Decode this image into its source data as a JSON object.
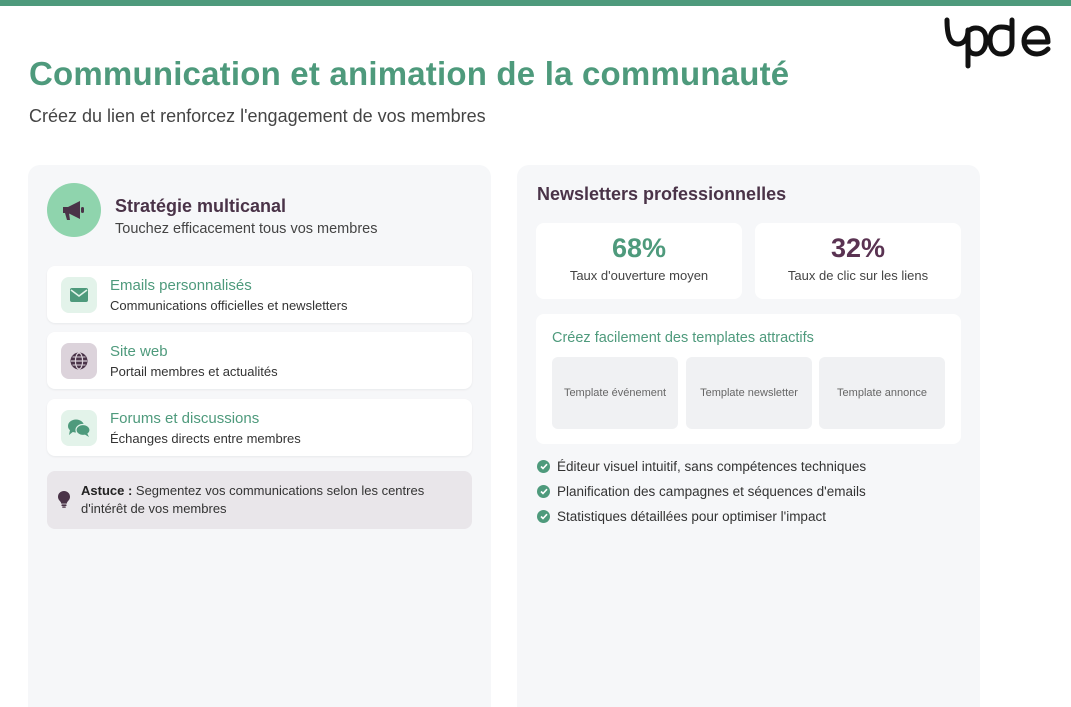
{
  "page": {
    "title": "Communication et animation de la communauté",
    "subtitle": "Créez du lien et renforcez l'engagement de vos membres"
  },
  "colors": {
    "brand_green": "#4e9a7c",
    "brand_plum": "#4a3348",
    "panel_bg": "#f6f7f9"
  },
  "logo": {
    "icon": "brand-logo"
  },
  "strategy": {
    "icon": "megaphone-icon",
    "title": "Stratégie multicanal",
    "subtitle": "Touchez efficacement tous vos membres",
    "channels": [
      {
        "icon": "envelope-icon",
        "name": "Emails personnalisés",
        "desc": "Communications officielles et newsletters"
      },
      {
        "icon": "globe-icon",
        "name": "Site web",
        "desc": "Portail membres et actualités"
      },
      {
        "icon": "chat-bubbles-icon",
        "name": "Forums et discussions",
        "desc": "Échanges directs entre membres"
      }
    ],
    "tip": {
      "icon": "lightbulb-icon",
      "label": "Astuce :",
      "text": " Segmentez vos communications selon les centres d'intérêt de vos membres"
    }
  },
  "newsletters": {
    "title": "Newsletters professionnelles",
    "stats": [
      {
        "value": "68%",
        "label": "Taux d'ouverture moyen"
      },
      {
        "value": "32%",
        "label": "Taux de clic sur les liens"
      }
    ],
    "templates": {
      "heading": "Créez facilement des templates attractifs",
      "items": [
        "Template événement",
        "Template newsletter",
        "Template annonce"
      ]
    },
    "features": [
      "Éditeur visuel intuitif, sans compétences techniques",
      "Planification des campagnes et séquences d'emails",
      "Statistiques détaillées pour optimiser l'impact"
    ]
  }
}
